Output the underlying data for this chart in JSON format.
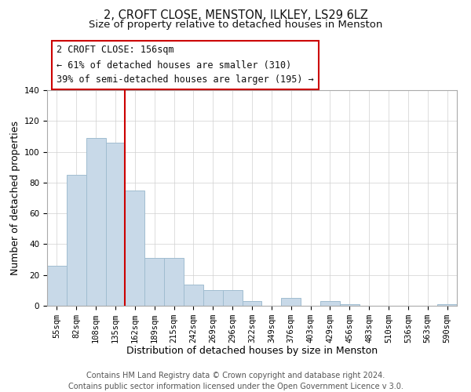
{
  "title": "2, CROFT CLOSE, MENSTON, ILKLEY, LS29 6LZ",
  "subtitle": "Size of property relative to detached houses in Menston",
  "xlabel": "Distribution of detached houses by size in Menston",
  "ylabel": "Number of detached properties",
  "bar_labels": [
    "55sqm",
    "82sqm",
    "108sqm",
    "135sqm",
    "162sqm",
    "189sqm",
    "215sqm",
    "242sqm",
    "269sqm",
    "296sqm",
    "322sqm",
    "349sqm",
    "376sqm",
    "403sqm",
    "429sqm",
    "456sqm",
    "483sqm",
    "510sqm",
    "536sqm",
    "563sqm",
    "590sqm"
  ],
  "bar_values": [
    26,
    85,
    109,
    106,
    75,
    31,
    31,
    14,
    10,
    10,
    3,
    0,
    5,
    0,
    3,
    1,
    0,
    0,
    0,
    0,
    1
  ],
  "bar_color": "#c8d9e8",
  "bar_edge_color": "#a0bdd0",
  "vline_x_idx": 3,
  "vline_color": "#cc0000",
  "ylim": [
    0,
    140
  ],
  "yticks": [
    0,
    20,
    40,
    60,
    80,
    100,
    120,
    140
  ],
  "annotation_title": "2 CROFT CLOSE: 156sqm",
  "annotation_line1": "← 61% of detached houses are smaller (310)",
  "annotation_line2": "39% of semi-detached houses are larger (195) →",
  "annotation_box_color": "#ffffff",
  "annotation_box_edge": "#cc0000",
  "footer1": "Contains HM Land Registry data © Crown copyright and database right 2024.",
  "footer2": "Contains public sector information licensed under the Open Government Licence v 3.0.",
  "title_fontsize": 10.5,
  "subtitle_fontsize": 9.5,
  "axis_label_fontsize": 9,
  "tick_fontsize": 7.5,
  "annotation_fontsize": 8.5,
  "footer_fontsize": 7
}
